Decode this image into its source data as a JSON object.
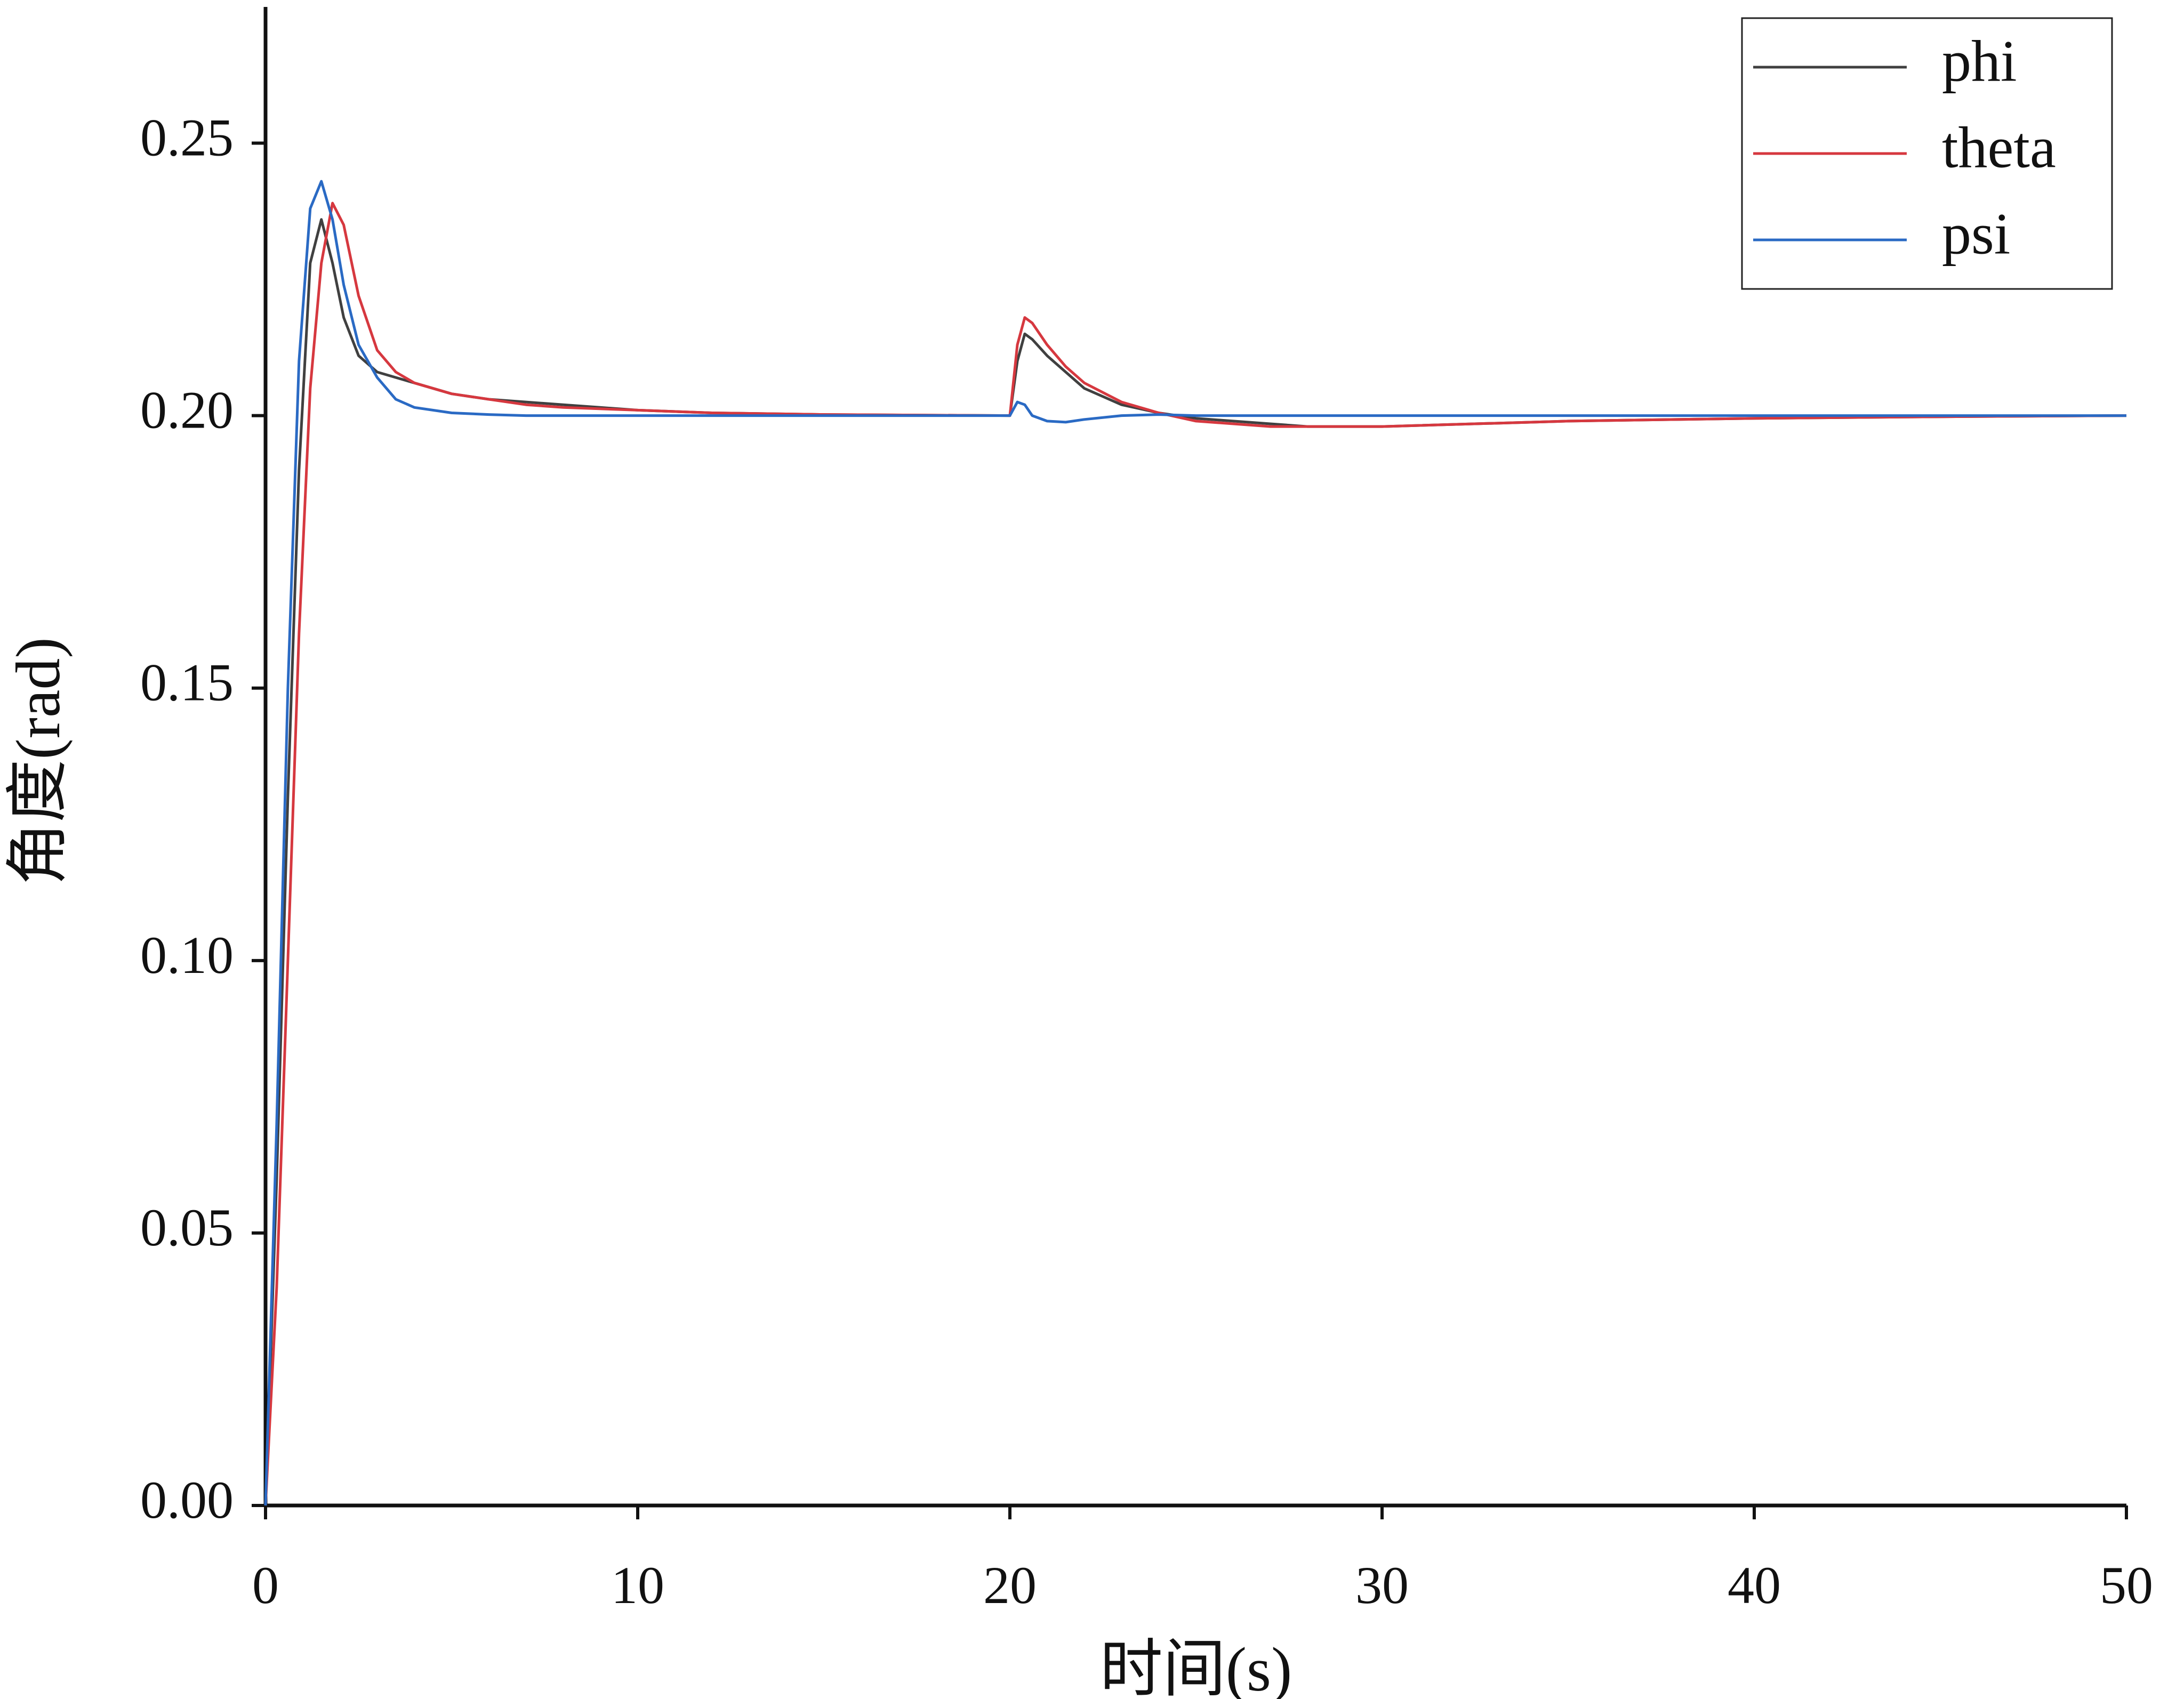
{
  "chart_data": {
    "type": "line",
    "x_label": "时间(s)",
    "y_label": "角度(rad)",
    "x": [
      0,
      0.3,
      0.6,
      0.9,
      1.2,
      1.5,
      1.8,
      2.1,
      2.5,
      3,
      3.5,
      4,
      5,
      6,
      7,
      8,
      10,
      12,
      15,
      20,
      20.2,
      20.4,
      20.6,
      21,
      21.5,
      22,
      23,
      24,
      25,
      27,
      28,
      30,
      35,
      40,
      45,
      50
    ],
    "series": [
      {
        "name": "phi",
        "color": "#404040",
        "values": [
          0,
          0.06,
          0.13,
          0.19,
          0.228,
          0.236,
          0.228,
          0.218,
          0.211,
          0.208,
          0.207,
          0.206,
          0.204,
          0.203,
          0.2025,
          0.202,
          0.201,
          0.2005,
          0.2002,
          0.2,
          0.21,
          0.215,
          0.214,
          0.211,
          0.208,
          0.205,
          0.202,
          0.2005,
          0.1995,
          0.1985,
          0.198,
          0.198,
          0.199,
          0.1995,
          0.1998,
          0.2
        ]
      },
      {
        "name": "theta",
        "color": "#d6383f",
        "values": [
          0,
          0.04,
          0.1,
          0.16,
          0.205,
          0.228,
          0.239,
          0.235,
          0.222,
          0.212,
          0.208,
          0.206,
          0.204,
          0.203,
          0.202,
          0.2015,
          0.201,
          0.2005,
          0.2002,
          0.2,
          0.213,
          0.218,
          0.217,
          0.213,
          0.209,
          0.206,
          0.2025,
          0.2005,
          0.199,
          0.198,
          0.198,
          0.198,
          0.199,
          0.1995,
          0.1998,
          0.2
        ]
      },
      {
        "name": "psi",
        "color": "#2a6ac4",
        "values": [
          0,
          0.07,
          0.15,
          0.21,
          0.238,
          0.243,
          0.236,
          0.224,
          0.213,
          0.207,
          0.203,
          0.2015,
          0.2005,
          0.2002,
          0.2,
          0.2,
          0.2,
          0.2,
          0.2,
          0.2,
          0.2025,
          0.202,
          0.2,
          0.199,
          0.1988,
          0.1993,
          0.2,
          0.2002,
          0.2,
          0.2,
          0.2,
          0.2,
          0.2,
          0.2,
          0.2,
          0.2
        ]
      }
    ],
    "xlim": [
      0,
      50
    ],
    "xticks": [
      0,
      10,
      20,
      30,
      40,
      50
    ],
    "ylim": [
      0,
      0.275
    ],
    "yticks": [
      {
        "value": 0,
        "label": "0.00"
      },
      {
        "value": 0.05,
        "label": "0.05"
      },
      {
        "value": 0.1,
        "label": "0.10"
      },
      {
        "value": 0.15,
        "label": "0.15"
      },
      {
        "value": 0.2,
        "label": "0.20"
      },
      {
        "value": 0.25,
        "label": "0.25"
      }
    ],
    "legend": "upper-right",
    "grid": false
  }
}
